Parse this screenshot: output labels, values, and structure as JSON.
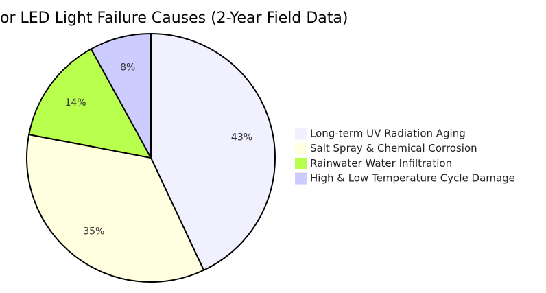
{
  "chart_data": {
    "type": "pie",
    "title": "or LED Light Failure Causes (2-Year Field Data)",
    "categories": [
      "Long-term UV Radiation Aging",
      "Salt Spray & Chemical Corrosion",
      "Rainwater Water Infiltration",
      "High & Low Temperature Cycle Damage"
    ],
    "values": [
      43,
      35,
      14,
      8
    ],
    "value_labels": [
      "43%",
      "35%",
      "14%",
      "8%"
    ],
    "colors": [
      "#f0f0ff",
      "#ffffe0",
      "#b9ff4d",
      "#ccccff"
    ]
  }
}
